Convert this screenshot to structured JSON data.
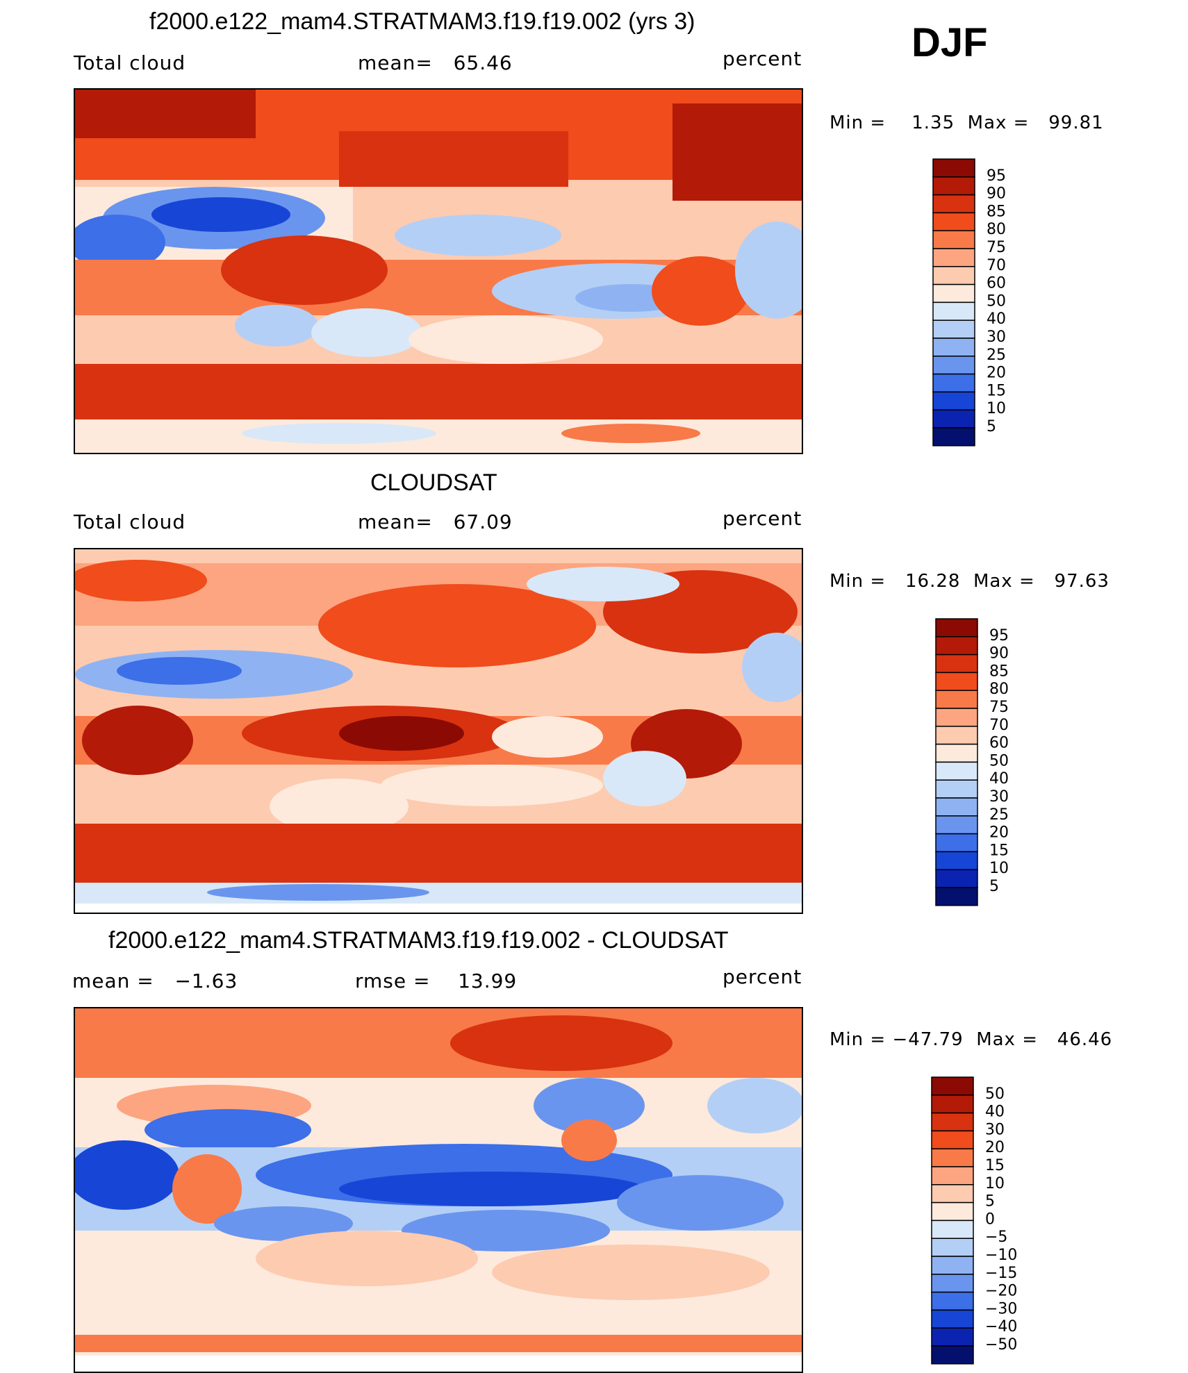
{
  "season_label": "DJF",
  "units_label": "percent",
  "panels": [
    {
      "title": "f2000.e122_mam4.STRATMAM3.f19.f19.002 (yrs 3)",
      "left_label": "Total cloud",
      "center_label": "mean=   65.46",
      "right_label": "percent",
      "minmax": "Min =    1.35  Max =   99.81",
      "colorbar": {
        "levels": [
          "95",
          "90",
          "85",
          "80",
          "75",
          "70",
          "60",
          "50",
          "40",
          "30",
          "25",
          "20",
          "15",
          "10",
          "5"
        ],
        "colors": [
          "#8b0a04",
          "#b31a08",
          "#d83210",
          "#f04c1c",
          "#f87a48",
          "#fca580",
          "#fdcbb0",
          "#fdeadc",
          "#d8e8f8",
          "#b4cff5",
          "#8fb3f2",
          "#6a95ee",
          "#3c6fe8",
          "#1746d6",
          "#0a23b0",
          "#03106e"
        ]
      }
    },
    {
      "title": "CLOUDSAT",
      "left_label": "Total cloud",
      "center_label": "mean=   67.09",
      "right_label": "percent",
      "minmax": "Min =   16.28  Max =   97.63",
      "colorbar": {
        "levels": [
          "95",
          "90",
          "85",
          "80",
          "75",
          "70",
          "60",
          "50",
          "40",
          "30",
          "25",
          "20",
          "15",
          "10",
          "5"
        ],
        "colors": [
          "#8b0a04",
          "#b31a08",
          "#d83210",
          "#f04c1c",
          "#f87a48",
          "#fca580",
          "#fdcbb0",
          "#fdeadc",
          "#d8e8f8",
          "#b4cff5",
          "#8fb3f2",
          "#6a95ee",
          "#3c6fe8",
          "#1746d6",
          "#0a23b0",
          "#03106e"
        ]
      }
    },
    {
      "title": "f2000.e122_mam4.STRATMAM3.f19.f19.002 - CLOUDSAT",
      "left_label": "mean =   −1.63",
      "center_label": "rmse =    13.99",
      "right_label": "percent",
      "minmax": "Min = −47.79  Max =   46.46",
      "colorbar": {
        "levels": [
          "50",
          "40",
          "30",
          "20",
          "15",
          "10",
          "5",
          "0",
          "−5",
          "−10",
          "−15",
          "−20",
          "−30",
          "−40",
          "−50"
        ],
        "colors": [
          "#8b0a04",
          "#b31a08",
          "#d83210",
          "#f04c1c",
          "#f87a48",
          "#fca580",
          "#fdcbb0",
          "#fdeadc",
          "#d8e8f8",
          "#b4cff5",
          "#8fb3f2",
          "#6a95ee",
          "#3c6fe8",
          "#1746d6",
          "#0a23b0",
          "#03106e"
        ]
      }
    }
  ],
  "chart_data": {
    "type": "heatmap",
    "season": "DJF",
    "units": "percent",
    "maps": [
      {
        "title": "f2000.e122_mam4.STRATMAM3.f19.f19.002 (yrs 3)",
        "variable": "Total cloud",
        "mean": 65.46,
        "min": 1.35,
        "max": 99.81,
        "contour_levels": [
          5,
          10,
          15,
          20,
          25,
          30,
          40,
          50,
          60,
          70,
          75,
          80,
          85,
          90,
          95
        ]
      },
      {
        "title": "CLOUDSAT",
        "variable": "Total cloud",
        "mean": 67.09,
        "min": 16.28,
        "max": 97.63,
        "contour_levels": [
          5,
          10,
          15,
          20,
          25,
          30,
          40,
          50,
          60,
          70,
          75,
          80,
          85,
          90,
          95
        ]
      },
      {
        "title": "f2000.e122_mam4.STRATMAM3.f19.f19.002 - CLOUDSAT",
        "mean": -1.63,
        "rmse": 13.99,
        "min": -47.79,
        "max": 46.46,
        "contour_levels": [
          -50,
          -40,
          -30,
          -20,
          -15,
          -10,
          -5,
          0,
          5,
          10,
          15,
          20,
          30,
          40,
          50
        ]
      }
    ]
  }
}
